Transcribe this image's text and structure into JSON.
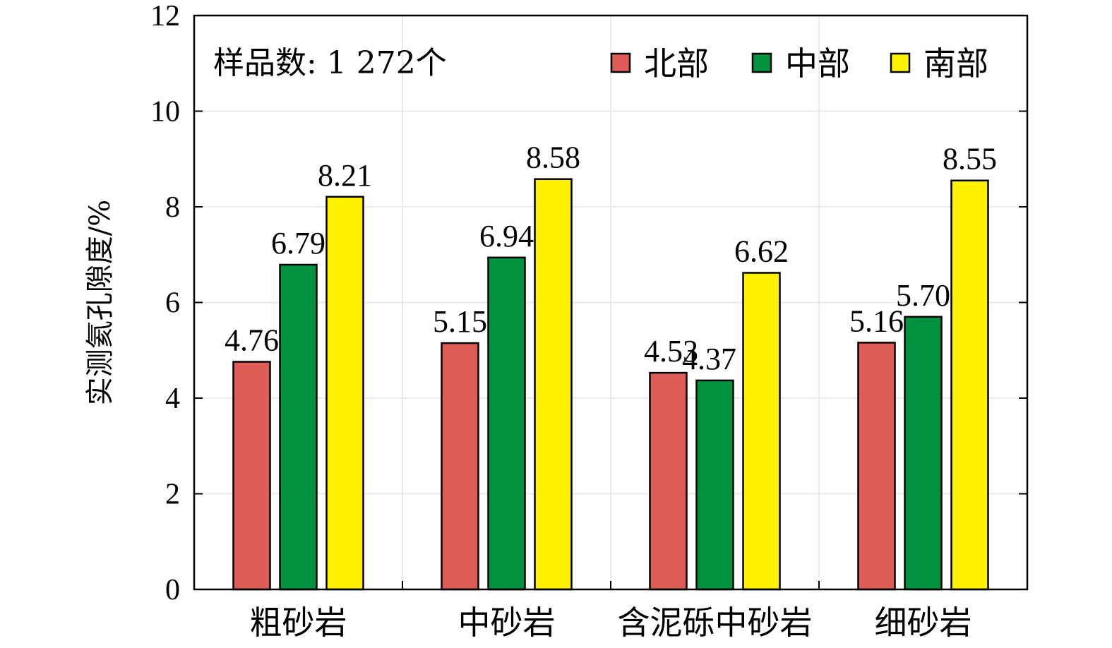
{
  "chart_data": {
    "type": "bar",
    "categories": [
      "粗砂岩",
      "中砂岩",
      "含泥砾中砂岩",
      "细砂岩"
    ],
    "series": [
      {
        "name": "北部",
        "color": "#e05c58",
        "values": [
          4.76,
          5.15,
          4.53,
          5.16
        ]
      },
      {
        "name": "中部",
        "color": "#00923f",
        "values": [
          6.79,
          6.94,
          4.37,
          5.7
        ]
      },
      {
        "name": "南部",
        "color": "#fff200",
        "values": [
          8.21,
          8.58,
          6.62,
          8.55
        ]
      }
    ],
    "value_labels": [
      [
        "4.76",
        "5.15",
        "4.53",
        "5.16"
      ],
      [
        "6.79",
        "6.94",
        "4.37",
        "5.70"
      ],
      [
        "8.21",
        "8.58",
        "6.62",
        "8.55"
      ]
    ],
    "ylabel": "实测氦孔隙度/%",
    "xlabel": "",
    "ylim": [
      0,
      12
    ],
    "yticks": [
      0,
      2,
      4,
      6,
      8,
      10,
      12
    ],
    "ytick_labels": [
      "0",
      "2",
      "4",
      "6",
      "8",
      "10",
      "12"
    ],
    "annotation": "样品数: 1 272个",
    "grid": true,
    "legend_position": "top-right"
  }
}
